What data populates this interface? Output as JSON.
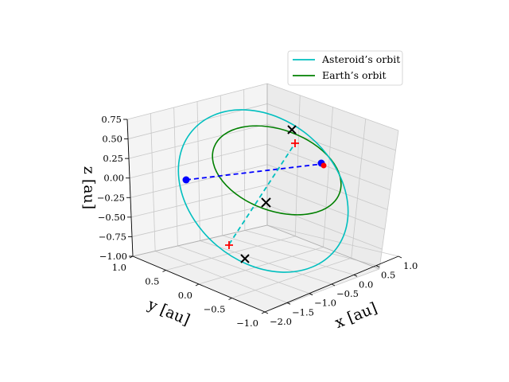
{
  "chart_data": {
    "type": "scatter",
    "projection": "3d",
    "grid": true,
    "legend_placement": "top-right",
    "xlabel": "x [au]",
    "ylabel": "y [au]",
    "zlabel": "z [au]",
    "xlim": [
      -2.0,
      1.0
    ],
    "ylim": [
      -1.0,
      1.0
    ],
    "zlim": [
      -1.0,
      0.75
    ],
    "x_ticks": [
      "−2.0",
      "−1.5",
      "−1.0",
      "−0.5",
      "0.0",
      "0.5",
      "1.0"
    ],
    "y_ticks": [
      "−1.0",
      "−0.5",
      "0.0",
      "0.5",
      "1.0"
    ],
    "z_ticks": [
      "−1.00",
      "−0.75",
      "−0.50",
      "−0.25",
      "0.00",
      "0.25",
      "0.50",
      "0.75"
    ],
    "series": [
      {
        "name": "Asteroid’s orbit",
        "color": "#00bfbf"
      },
      {
        "name": "Earth’s orbit",
        "color": "#008000"
      }
    ],
    "colors": {
      "asteroid": "#00bfbf",
      "earth": "#008000",
      "blue_line": "#0000ff",
      "cross_marker": "#000000",
      "plus_marker": "#ff0000"
    }
  },
  "legend": {
    "asteroid": "Asteroid’s orbit",
    "earth": "Earth’s orbit"
  },
  "axis_labels": {
    "x": "x [au]",
    "y": "y [au]",
    "z": "z [au]"
  }
}
